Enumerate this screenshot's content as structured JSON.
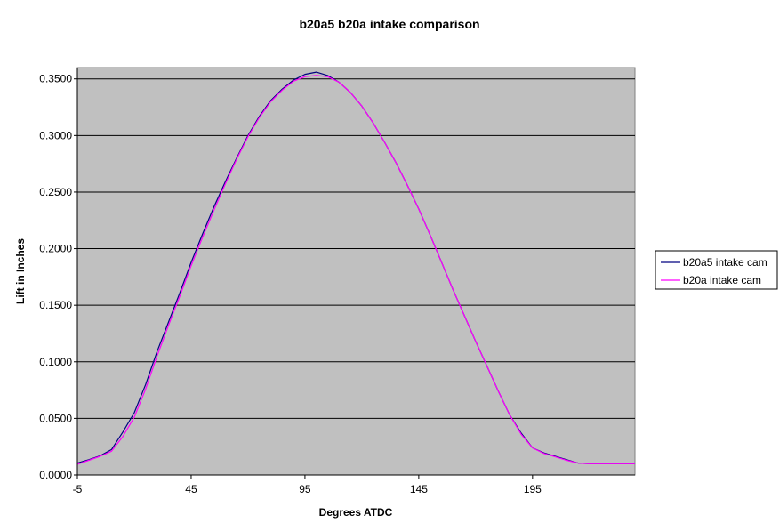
{
  "chart_data": {
    "type": "line",
    "title": "b20a5 b20a intake comparison",
    "xlabel": "Degrees ATDC",
    "ylabel": "Lift in Inches",
    "xlim": [
      -5,
      240
    ],
    "ylim": [
      0,
      0.36
    ],
    "x_ticks": [
      -5,
      45,
      95,
      145,
      195
    ],
    "y_ticks": [
      "0.0000",
      "0.0500",
      "0.1000",
      "0.1500",
      "0.2000",
      "0.2500",
      "0.3000",
      "0.3500"
    ],
    "grid": "horizontal",
    "legend_position": "right",
    "series": [
      {
        "name": "b20a5 intake cam",
        "color": "#000080",
        "x": [
          -5,
          0,
          5,
          10,
          15,
          20,
          25,
          30,
          35,
          40,
          45,
          50,
          55,
          60,
          65,
          70,
          75,
          80,
          85,
          90,
          95,
          100,
          105,
          110,
          115,
          120,
          125,
          130,
          135,
          140,
          145,
          150,
          155,
          160,
          165,
          170,
          175,
          180,
          185,
          190,
          195,
          200,
          205,
          210,
          215,
          220,
          225,
          230,
          235,
          240
        ],
        "y": [
          0.0105,
          0.0135,
          0.017,
          0.0225,
          0.038,
          0.055,
          0.08,
          0.109,
          0.135,
          0.161,
          0.188,
          0.213,
          0.237,
          0.259,
          0.28,
          0.3,
          0.317,
          0.331,
          0.341,
          0.349,
          0.354,
          0.356,
          0.353,
          0.347,
          0.338,
          0.326,
          0.311,
          0.294,
          0.276,
          0.256,
          0.235,
          0.212,
          0.188,
          0.164,
          0.141,
          0.118,
          0.096,
          0.074,
          0.053,
          0.037,
          0.024,
          0.0195,
          0.0165,
          0.0135,
          0.0105,
          0.01,
          0.01,
          0.01,
          0.01,
          0.01
        ]
      },
      {
        "name": "b20a intake cam",
        "color": "#ff00ff",
        "x": [
          -5,
          0,
          5,
          10,
          15,
          20,
          25,
          30,
          35,
          40,
          45,
          50,
          55,
          60,
          65,
          70,
          75,
          80,
          85,
          90,
          95,
          100,
          105,
          110,
          115,
          120,
          125,
          130,
          135,
          140,
          145,
          150,
          155,
          160,
          165,
          170,
          175,
          180,
          185,
          190,
          195,
          200,
          205,
          210,
          215,
          220,
          225,
          230,
          235,
          240
        ],
        "y": [
          0.0095,
          0.013,
          0.0165,
          0.021,
          0.034,
          0.051,
          0.076,
          0.105,
          0.132,
          0.158,
          0.185,
          0.21,
          0.234,
          0.257,
          0.279,
          0.299,
          0.316,
          0.33,
          0.34,
          0.348,
          0.352,
          0.353,
          0.352,
          0.347,
          0.338,
          0.326,
          0.311,
          0.294,
          0.276,
          0.256,
          0.235,
          0.212,
          0.188,
          0.164,
          0.141,
          0.118,
          0.096,
          0.074,
          0.053,
          0.036,
          0.024,
          0.019,
          0.016,
          0.013,
          0.0105,
          0.01,
          0.01,
          0.01,
          0.01,
          0.01
        ]
      }
    ]
  }
}
